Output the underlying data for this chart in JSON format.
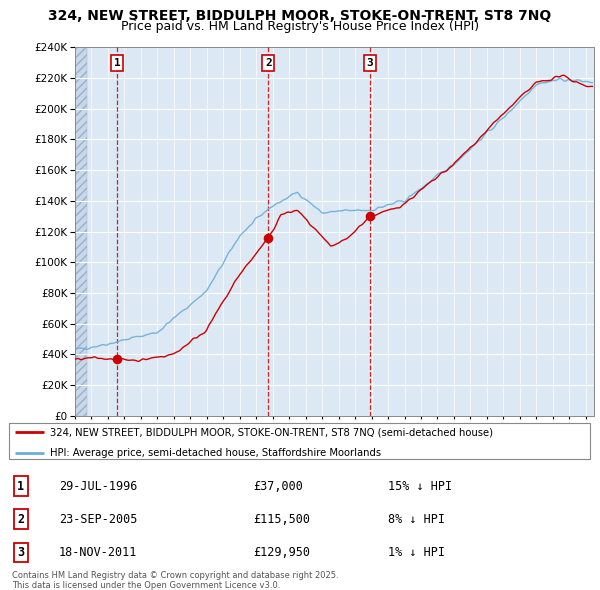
{
  "title1": "324, NEW STREET, BIDDULPH MOOR, STOKE-ON-TRENT, ST8 7NQ",
  "title2": "Price paid vs. HM Land Registry's House Price Index (HPI)",
  "legend_label1": "324, NEW STREET, BIDDULPH MOOR, STOKE-ON-TRENT, ST8 7NQ (semi-detached house)",
  "legend_label2": "HPI: Average price, semi-detached house, Staffordshire Moorlands",
  "footer": "Contains HM Land Registry data © Crown copyright and database right 2025.\nThis data is licensed under the Open Government Licence v3.0.",
  "sale_points": [
    {
      "label": "1",
      "date_x": 1996.57,
      "price": 37000
    },
    {
      "label": "2",
      "date_x": 2005.73,
      "price": 115500
    },
    {
      "label": "3",
      "date_x": 2011.9,
      "price": 129950
    }
  ],
  "sale_table": [
    {
      "num": "1",
      "date": "29-JUL-1996",
      "price": "£37,000",
      "hpi": "15% ↓ HPI"
    },
    {
      "num": "2",
      "date": "23-SEP-2005",
      "price": "£115,500",
      "hpi": "8% ↓ HPI"
    },
    {
      "num": "3",
      "date": "18-NOV-2011",
      "price": "£129,950",
      "hpi": "1% ↓ HPI"
    }
  ],
  "ylim": [
    0,
    240000
  ],
  "xlim_start": 1994.0,
  "xlim_end": 2025.5,
  "bg_color": "#dce9f5",
  "grid_color": "#ffffff",
  "hpi_line_color": "#6baed6",
  "sale_line_color": "#cc0000",
  "sale_dot_color": "#cc0000",
  "vline_color": "#cc0000",
  "box_color": "#cc0000",
  "title_fontsize": 10,
  "subtitle_fontsize": 9
}
